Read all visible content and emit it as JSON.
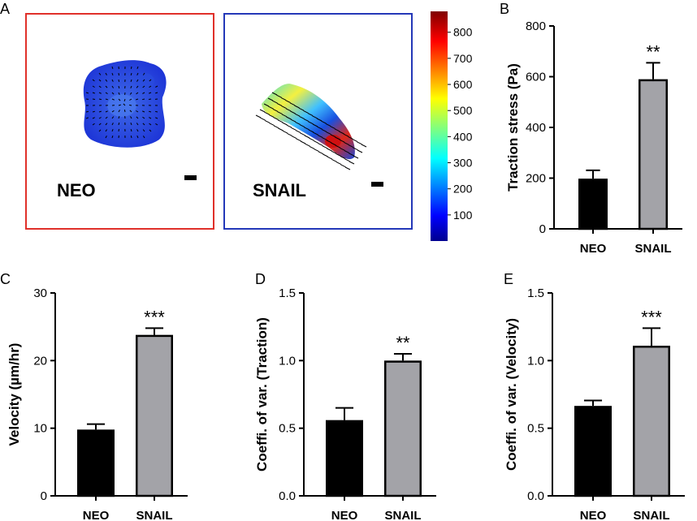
{
  "panels": [
    {
      "letter": "A"
    },
    {
      "letter": "B"
    },
    {
      "letter": "C"
    },
    {
      "letter": "D"
    },
    {
      "letter": "E"
    }
  ],
  "heatmap_panel": {
    "cells": [
      {
        "label": "NEO",
        "border_color": "#e0302a"
      },
      {
        "label": "SNAIL",
        "border_color": "#2438b8"
      }
    ],
    "colorbar": {
      "ticks": [
        "100",
        "200",
        "300",
        "400",
        "500",
        "600",
        "700",
        "800"
      ],
      "range": [
        0,
        880
      ],
      "colormap": "jet"
    }
  },
  "colors": {
    "neo_bar": "#000000",
    "snail_bar": "#a3a3a8"
  },
  "chart_data": [
    {
      "panel": "B",
      "type": "bar",
      "categories": [
        "NEO",
        "SNAIL"
      ],
      "values": [
        198,
        590
      ],
      "errors": [
        33,
        65
      ],
      "ylabel": "Traction stress (Pa)",
      "ylim": [
        0,
        800
      ],
      "yticks": [
        "0",
        "200",
        "400",
        "600",
        "800"
      ],
      "significance": [
        "",
        "**"
      ]
    },
    {
      "panel": "C",
      "type": "bar",
      "categories": [
        "NEO",
        "SNAIL"
      ],
      "values": [
        9.8,
        23.8
      ],
      "errors": [
        0.8,
        1.0
      ],
      "ylabel": "Velocity (µm/hr)",
      "ylim": [
        0,
        30
      ],
      "yticks": [
        "0",
        "10",
        "20",
        "30"
      ],
      "significance": [
        "",
        "***"
      ]
    },
    {
      "panel": "D",
      "type": "bar",
      "categories": [
        "NEO",
        "SNAIL"
      ],
      "values": [
        0.56,
        1.0
      ],
      "errors": [
        0.09,
        0.05
      ],
      "ylabel": "Coeffi. of var. (Traction)",
      "ylim": [
        0,
        1.5
      ],
      "yticks": [
        "0.0",
        "0.5",
        "1.0",
        "1.5"
      ],
      "significance": [
        "",
        "**"
      ]
    },
    {
      "panel": "E",
      "type": "bar",
      "categories": [
        "NEO",
        "SNAIL"
      ],
      "values": [
        0.665,
        1.11
      ],
      "errors": [
        0.04,
        0.13
      ],
      "ylabel": "Coeffi. of var. (Velocity)",
      "ylim": [
        0,
        1.5
      ],
      "yticks": [
        "0.0",
        "0.5",
        "1.0",
        "1.5"
      ],
      "significance": [
        "",
        "***"
      ]
    }
  ]
}
